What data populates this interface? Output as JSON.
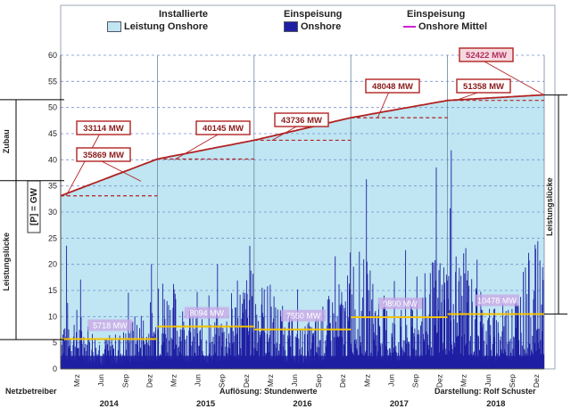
{
  "chart_data": {
    "type": "area",
    "legend": {
      "position": "top",
      "entries": [
        {
          "title": "Installierte",
          "label": "Leistung Onshore",
          "color": "#bfe6f2"
        },
        {
          "title": "Einspeisung",
          "label": "Onshore",
          "color": "#1f1fa3"
        },
        {
          "title": "Einspeisung",
          "label": "Onshore Mittel",
          "color": "#cc22cc"
        }
      ]
    },
    "y_axis": {
      "range": [
        0,
        60
      ],
      "ticks": [
        "0",
        "5",
        "10",
        "15",
        "20",
        "25",
        "30",
        "35",
        "40",
        "45",
        "50",
        "55",
        "60"
      ],
      "unit_label": "[P] = GW"
    },
    "x_axis": {
      "years": [
        "2014",
        "2015",
        "2016",
        "2017",
        "2018"
      ],
      "month_ticks": [
        "Mrz",
        "Jun",
        "Sep",
        "Dez"
      ]
    },
    "installed_capacity_mw": [
      {
        "year_start": "2014",
        "value": 33114
      },
      {
        "year_start": "2015",
        "value": 40145
      },
      {
        "year_start": "2016",
        "value": 43736
      },
      {
        "year_start": "2017",
        "value": 48048
      },
      {
        "year_start": "2018",
        "value": 51358
      },
      {
        "year_end": "2018",
        "value": 52422
      }
    ],
    "installed_label_2014_end": "35869 MW",
    "capacity_labels": [
      "33114 MW",
      "35869 MW",
      "40145 MW",
      "43736 MW",
      "48048 MW",
      "51358 MW",
      "52422 MW"
    ],
    "yearly_mean_feed_in_mw": [
      {
        "year": "2014",
        "value": 5718,
        "label": "5718 MW"
      },
      {
        "year": "2015",
        "value": 8094,
        "label": "8094 MW"
      },
      {
        "year": "2016",
        "value": 7550,
        "label": "7550 MW"
      },
      {
        "year": "2017",
        "value": 9890,
        "label": "9890 MW"
      },
      {
        "year": "2018",
        "value": 10478,
        "label": "10478 MW"
      }
    ],
    "annotations": [
      "Zubau",
      "Leistungslücke",
      "Leistungslücke"
    ],
    "credits": {
      "left": "Netzbetreiber",
      "center": "Auflösung: Stundenwerte",
      "right": "Darstellung: Rolf Schuster"
    }
  }
}
